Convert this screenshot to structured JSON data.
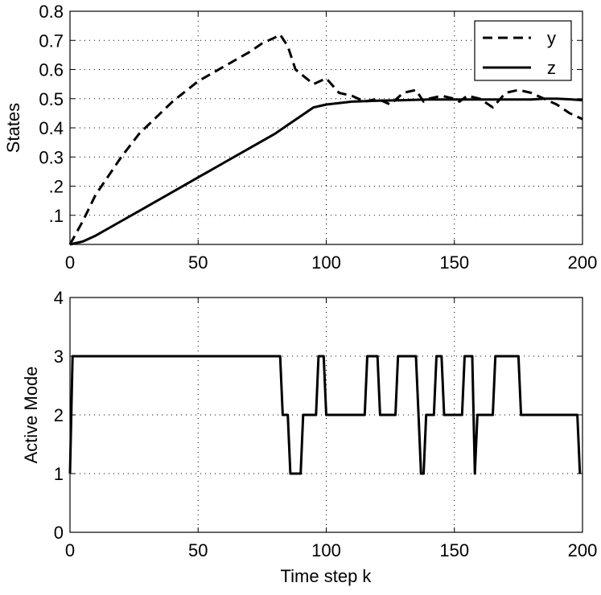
{
  "chart_data": [
    {
      "type": "line",
      "title": "",
      "xlabel": "",
      "ylabel": "States",
      "xlim": [
        0,
        200
      ],
      "ylim": [
        0,
        0.8
      ],
      "grid": true,
      "legend": "top-right",
      "x_ticks": [
        0,
        50,
        100,
        150,
        200
      ],
      "x_tick_labels": [
        "0",
        "50",
        "100",
        "150",
        "200"
      ],
      "y_ticks": [
        0.1,
        0.2,
        0.3,
        0.4,
        0.5,
        0.6,
        0.7,
        0.8
      ],
      "y_tick_labels": [
        ".1",
        ".2",
        "0.3",
        "0.4",
        "0.5",
        "0.6",
        "0.7",
        "0.8"
      ],
      "series": [
        {
          "name": "y",
          "style": "dashed",
          "color": "#000000",
          "x": [
            0,
            5,
            10,
            20,
            27,
            40,
            50,
            60,
            70,
            75,
            80,
            82,
            85,
            88,
            95,
            100,
            105,
            110,
            115,
            120,
            125,
            130,
            135,
            138,
            140,
            145,
            150,
            152,
            155,
            160,
            165,
            170,
            175,
            180,
            185,
            190,
            195,
            200
          ],
          "y": [
            0.0,
            0.08,
            0.17,
            0.3,
            0.38,
            0.49,
            0.56,
            0.61,
            0.66,
            0.69,
            0.71,
            0.72,
            0.68,
            0.6,
            0.55,
            0.57,
            0.52,
            0.51,
            0.49,
            0.5,
            0.48,
            0.52,
            0.53,
            0.49,
            0.5,
            0.51,
            0.5,
            0.49,
            0.51,
            0.5,
            0.47,
            0.52,
            0.53,
            0.52,
            0.5,
            0.48,
            0.45,
            0.43
          ]
        },
        {
          "name": "z",
          "style": "solid",
          "color": "#000000",
          "x": [
            0,
            5,
            10,
            20,
            30,
            40,
            50,
            60,
            70,
            80,
            85,
            90,
            95,
            100,
            110,
            120,
            130,
            140,
            150,
            160,
            170,
            180,
            185,
            190,
            195,
            200
          ],
          "y": [
            0.0,
            0.01,
            0.03,
            0.08,
            0.13,
            0.18,
            0.23,
            0.28,
            0.33,
            0.38,
            0.41,
            0.44,
            0.47,
            0.48,
            0.49,
            0.493,
            0.495,
            0.497,
            0.497,
            0.497,
            0.497,
            0.497,
            0.5,
            0.5,
            0.498,
            0.495
          ]
        }
      ]
    },
    {
      "type": "line",
      "title": "",
      "xlabel": "Time step k",
      "ylabel": "Active Mode",
      "xlim": [
        0,
        200
      ],
      "ylim": [
        0,
        4
      ],
      "grid": true,
      "x_ticks": [
        0,
        50,
        100,
        150,
        200
      ],
      "x_tick_labels": [
        "0",
        "50",
        "100",
        "150",
        "200"
      ],
      "y_ticks": [
        0,
        1,
        2,
        3,
        4
      ],
      "y_tick_labels": [
        "0",
        "1",
        "2",
        "3",
        "4"
      ],
      "series": [
        {
          "name": "Active Mode",
          "style": "solid",
          "color": "#000000",
          "x": [
            0,
            1,
            82,
            83,
            84,
            85,
            86,
            87,
            88,
            89,
            90,
            91,
            92,
            93,
            94,
            95,
            96,
            97,
            98,
            99,
            100,
            101,
            102,
            103,
            104,
            105,
            106,
            107,
            108,
            109,
            110,
            111,
            112,
            113,
            114,
            115,
            116,
            117,
            118,
            119,
            120,
            121,
            122,
            123,
            124,
            125,
            126,
            127,
            128,
            129,
            130,
            131,
            132,
            133,
            134,
            135,
            136,
            137,
            138,
            139,
            140,
            141,
            142,
            143,
            144,
            145,
            146,
            147,
            148,
            149,
            150,
            151,
            152,
            153,
            154,
            155,
            156,
            157,
            158,
            159,
            160,
            161,
            162,
            163,
            164,
            165,
            166,
            167,
            168,
            169,
            170,
            171,
            172,
            173,
            174,
            175,
            176,
            198,
            199
          ],
          "y": [
            1,
            3,
            3,
            2,
            2,
            2,
            1,
            1,
            1,
            1,
            1,
            2,
            2,
            2,
            2,
            2,
            2,
            3,
            3,
            3,
            2,
            2,
            2,
            2,
            2,
            2,
            2,
            2,
            2,
            2,
            2,
            2,
            2,
            2,
            2,
            2,
            3,
            3,
            3,
            3,
            3,
            2,
            2,
            2,
            2,
            2,
            2,
            2,
            3,
            3,
            3,
            3,
            3,
            3,
            3,
            3,
            2,
            1,
            1,
            2,
            2,
            2,
            2,
            3,
            3,
            3,
            2,
            2,
            2,
            2,
            2,
            2,
            2,
            2,
            3,
            3,
            3,
            3,
            1,
            2,
            2,
            2,
            2,
            2,
            2,
            2,
            3,
            3,
            3,
            3,
            3,
            3,
            3,
            3,
            3,
            3,
            2,
            2,
            1
          ]
        }
      ]
    }
  ]
}
